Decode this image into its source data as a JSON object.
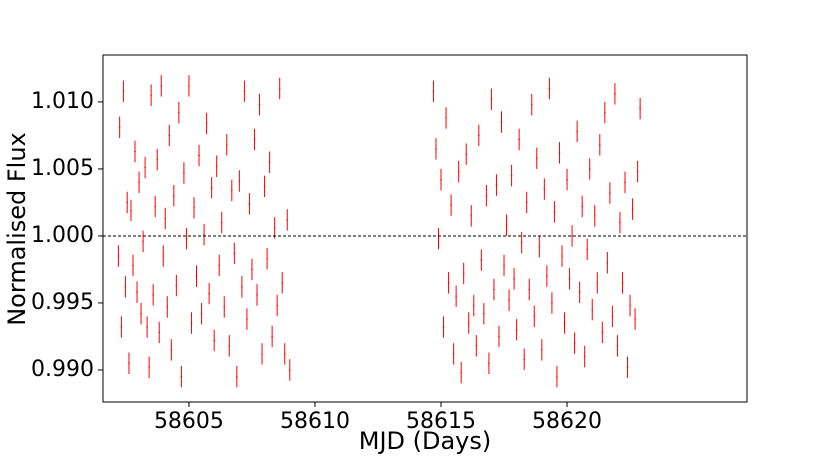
{
  "chart_data": {
    "type": "errorbar",
    "xlabel": "MJD (Days)",
    "ylabel": "Normalised Flux",
    "xlim": [
      58601.59,
      58627.14
    ],
    "ylim": [
      0.98761,
      1.0135
    ],
    "xticks": [
      58605,
      58610,
      58615,
      58620
    ],
    "yticks": [
      {
        "value": 0.99,
        "label": "0.990"
      },
      {
        "value": 0.995,
        "label": "0.995"
      },
      {
        "value": 1.0,
        "label": "1.000"
      },
      {
        "value": 1.005,
        "label": "1.005"
      },
      {
        "value": 1.01,
        "label": "1.010"
      }
    ],
    "hline": 1.0,
    "color": "#ff0000",
    "xerr": 0.03,
    "yerr": 0.0008,
    "x": [
      58602.2,
      58602.25,
      58602.32,
      58602.4,
      58602.48,
      58602.55,
      58602.62,
      58602.7,
      58602.78,
      58602.86,
      58602.94,
      58603.02,
      58603.1,
      58603.18,
      58603.26,
      58603.34,
      58603.42,
      58603.5,
      58603.58,
      58603.66,
      58603.74,
      58603.82,
      58603.9,
      58603.98,
      58604.06,
      58604.14,
      58604.22,
      58604.3,
      58604.4,
      58604.5,
      58604.6,
      58604.7,
      58604.8,
      58604.9,
      58605.0,
      58605.1,
      58605.2,
      58605.3,
      58605.4,
      58605.5,
      58605.6,
      58605.7,
      58605.8,
      58605.9,
      58606.0,
      58606.1,
      58606.2,
      58606.3,
      58606.4,
      58606.5,
      58606.6,
      58606.7,
      58606.8,
      58606.9,
      58607.0,
      58607.1,
      58607.2,
      58607.3,
      58607.4,
      58607.5,
      58607.6,
      58607.7,
      58607.8,
      58607.9,
      58608.0,
      58608.1,
      58608.2,
      58608.3,
      58608.4,
      58608.5,
      58608.6,
      58608.7,
      58608.8,
      58608.9,
      58609.0,
      58614.7,
      58614.8,
      58614.9,
      58615.0,
      58615.1,
      58615.2,
      58615.3,
      58615.4,
      58615.5,
      58615.6,
      58615.7,
      58615.8,
      58615.9,
      58616.0,
      58616.1,
      58616.2,
      58616.3,
      58616.4,
      58616.5,
      58616.6,
      58616.7,
      58616.8,
      58616.9,
      58617.0,
      58617.1,
      58617.2,
      58617.3,
      58617.4,
      58617.5,
      58617.6,
      58617.7,
      58617.8,
      58617.9,
      58618.0,
      58618.1,
      58618.2,
      58618.3,
      58618.4,
      58618.5,
      58618.6,
      58618.7,
      58618.8,
      58618.9,
      58619.0,
      58619.1,
      58619.2,
      58619.3,
      58619.4,
      58619.5,
      58619.6,
      58619.7,
      58619.8,
      58619.9,
      58620.0,
      58620.1,
      58620.2,
      58620.3,
      58620.4,
      58620.5,
      58620.6,
      58620.7,
      58620.8,
      58620.9,
      58621.0,
      58621.1,
      58621.2,
      58621.3,
      58621.4,
      58621.5,
      58621.6,
      58621.7,
      58621.8,
      58621.9,
      58622.0,
      58622.1,
      58622.2,
      58622.3,
      58622.4,
      58622.5,
      58622.6,
      58622.7,
      58622.8,
      58622.9
    ],
    "values": [
      0.9985,
      1.0081,
      0.9932,
      1.0108,
      0.9962,
      1.0025,
      0.9905,
      1.0019,
      0.9978,
      1.0063,
      0.9958,
      1.004,
      0.9942,
      0.9996,
      1.0051,
      0.9932,
      0.9902,
      1.0105,
      0.9956,
      1.0022,
      1.0057,
      0.9928,
      1.0112,
      0.9985,
      1.0013,
      0.9947,
      1.0075,
      0.9915,
      1.003,
      0.9963,
      1.0092,
      0.9895,
      1.0047,
      0.9998,
      1.0112,
      0.9935,
      1.0021,
      0.997,
      1.006,
      0.9942,
      1.0001,
      1.0084,
      0.9957,
      1.0036,
      0.9922,
      1.0052,
      0.9978,
      1.001,
      0.9947,
      1.0068,
      0.9918,
      1.0034,
      0.9987,
      0.9895,
      1.0041,
      0.9962,
      1.0108,
      0.9938,
      1.0024,
      0.9975,
      1.0072,
      0.9956,
      1.0098,
      0.9912,
      1.0037,
      0.9983,
      1.0055,
      0.9925,
      1.0006,
      0.9948,
      1.011,
      0.9965,
      0.9912,
      1.0012,
      0.99,
      1.0108,
      1.0065,
      0.9998,
      1.0042,
      0.9932,
      1.0088,
      0.9965,
      1.0023,
      0.9912,
      0.9955,
      1.0048,
      0.9898,
      0.9972,
      1.0061,
      0.9935,
      1.0015,
      0.9948,
      0.9918,
      1.0075,
      0.9982,
      0.9942,
      1.003,
      0.9905,
      1.0102,
      0.996,
      1.0038,
      0.9925,
      1.0085,
      0.9978,
      1.0008,
      0.9952,
      1.0045,
      0.9968,
      0.993,
      1.0072,
      0.9995,
      0.9908,
      1.0025,
      0.996,
      1.0098,
      0.994,
      1.0058,
      0.9992,
      0.9915,
      1.0035,
      0.997,
      1.011,
      0.995,
      1.0018,
      0.9895,
      1.0062,
      0.9985,
      0.9935,
      1.0042,
      0.9968,
      1.0,
      0.992,
      1.0078,
      0.9958,
      1.0022,
      0.991,
      0.999,
      1.005,
      0.9945,
      1.0015,
      0.9965,
      1.0068,
      0.9928,
      1.0092,
      0.998,
      1.0032,
      0.994,
      1.0106,
      0.9918,
      1.001,
      0.9965,
      1.004,
      0.9902,
      0.9948,
      1.002,
      0.9938,
      1.0048,
      1.0095
    ]
  }
}
